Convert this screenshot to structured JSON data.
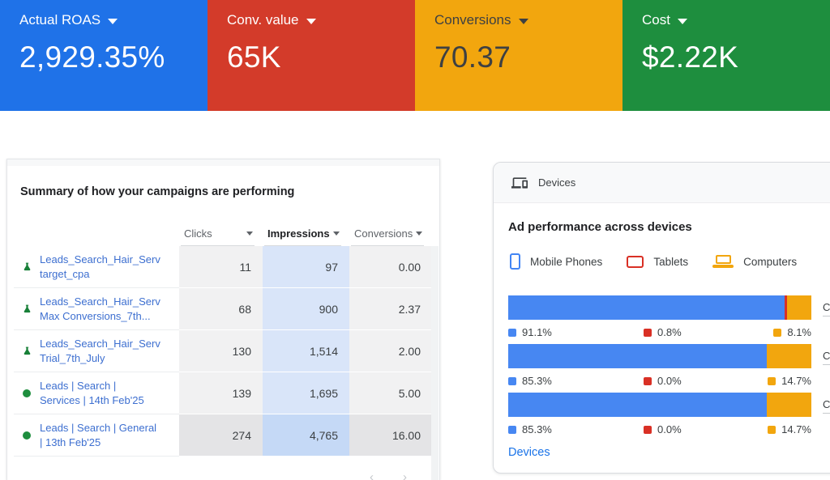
{
  "kpi_cards": [
    {
      "label": "Actual ROAS",
      "value": "2,929.35%",
      "bg": "#1f72e8",
      "text_color": "#ffffff"
    },
    {
      "label": "Conv. value",
      "value": "65K",
      "bg": "#d33b2a",
      "text_color": "#ffffff"
    },
    {
      "label": "Conversions",
      "value": "70.37",
      "bg": "#f2a60e",
      "text_color": "#3e4042"
    },
    {
      "label": "Cost",
      "value": "$2.22K",
      "bg": "#1e8e3e",
      "text_color": "#ffffff"
    }
  ],
  "campaign_table": {
    "title": "Summary of how your campaigns are performing",
    "columns": [
      {
        "label": "Clicks",
        "bold": false
      },
      {
        "label": "Impressions",
        "bold": true
      },
      {
        "label": "Conversions",
        "bold": false
      }
    ],
    "rows": [
      {
        "icon": "experiment",
        "name_line1": "Leads_Search_Hair_Serv",
        "name_line2": "target_cpa",
        "clicks": "11",
        "impressions": "97",
        "conversions": "0.00"
      },
      {
        "icon": "experiment",
        "name_line1": "Leads_Search_Hair_Serv",
        "name_line2": "Max Conversions_7th...",
        "clicks": "68",
        "impressions": "900",
        "conversions": "2.37"
      },
      {
        "icon": "experiment",
        "name_line1": "Leads_Search_Hair_Serv",
        "name_line2": "Trial_7th_July",
        "clicks": "130",
        "impressions": "1,514",
        "conversions": "2.00"
      },
      {
        "icon": "status-enabled",
        "name_line1": "Leads | Search |",
        "name_line2": "Services | 14th Feb'25",
        "clicks": "139",
        "impressions": "1,695",
        "conversions": "5.00"
      },
      {
        "icon": "status-enabled",
        "name_line1": "Leads | Search | General",
        "name_line2": "| 13th Feb'25",
        "clicks": "274",
        "impressions": "4,765",
        "conversions": "16.00"
      }
    ],
    "icon_colors": {
      "experiment": "#188038",
      "status_enabled": "#1e8e3e"
    },
    "link_color": "#3d6fd0",
    "pagination": {
      "prev": "‹",
      "next": "›"
    }
  },
  "devices_panel": {
    "header_label": "Devices",
    "title": "Ad performance across devices",
    "legend": [
      {
        "label": "Mobile Phones",
        "color": "#4285f4",
        "icon": "phone-icon"
      },
      {
        "label": "Tablets",
        "color": "#d93025",
        "icon": "tablet-icon"
      },
      {
        "label": "Computers",
        "color": "#f2a60e",
        "icon": "laptop-icon"
      }
    ],
    "footer_link": "Devices",
    "chart_data": {
      "type": "bar",
      "orientation": "horizontal",
      "stacked": true,
      "unit": "%",
      "series_names": [
        "Mobile Phones",
        "Tablets",
        "Computers"
      ],
      "colors": [
        "#4787f2",
        "#d93025",
        "#f2a60e"
      ],
      "rows": [
        {
          "label_cutoff": "C",
          "values": [
            91.1,
            0.8,
            8.1
          ],
          "display": [
            "91.1%",
            "0.8%",
            "8.1%"
          ]
        },
        {
          "label_cutoff": "C",
          "values": [
            85.3,
            0.0,
            14.7
          ],
          "display": [
            "85.3%",
            "0.0%",
            "14.7%"
          ]
        },
        {
          "label_cutoff": "C",
          "values": [
            85.3,
            0.0,
            14.7
          ],
          "display": [
            "85.3%",
            "0.0%",
            "14.7%"
          ]
        }
      ],
      "legend_position": "top",
      "grid": false
    }
  }
}
